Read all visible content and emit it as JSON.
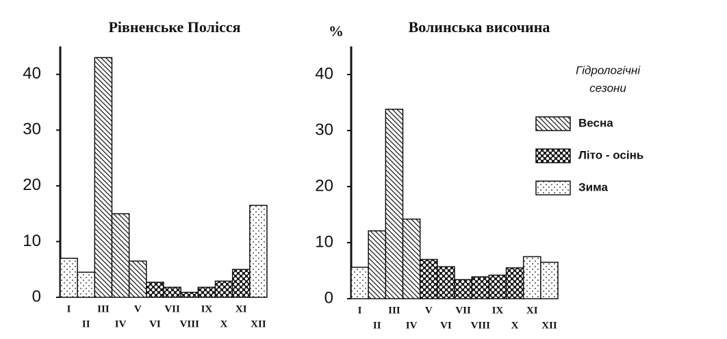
{
  "chart_data": [
    {
      "type": "bar",
      "title": "Рівненське Полісся",
      "categories": [
        "I",
        "II",
        "III",
        "IV",
        "V",
        "VI",
        "VII",
        "VIII",
        "IX",
        "X",
        "XI",
        "XII"
      ],
      "values": [
        7,
        4.5,
        43,
        15,
        6.5,
        2.7,
        1.8,
        0.9,
        1.8,
        2.9,
        5,
        16.5
      ],
      "season_of_bar": [
        2,
        2,
        0,
        0,
        0,
        1,
        1,
        1,
        1,
        1,
        1,
        2
      ],
      "ylim": [
        0,
        45
      ],
      "yticks": [
        0,
        10,
        20,
        30,
        40
      ]
    },
    {
      "type": "bar",
      "title": "Волинська височина",
      "y_label": "%",
      "categories": [
        "I",
        "II",
        "III",
        "IV",
        "V",
        "VI",
        "VII",
        "VIII",
        "IX",
        "X",
        "XI",
        "XII"
      ],
      "values": [
        5.6,
        12.1,
        33.8,
        14.2,
        7,
        5.7,
        3.4,
        3.9,
        4.2,
        5.5,
        7.5,
        6.5
      ],
      "season_of_bar": [
        2,
        0,
        0,
        0,
        1,
        1,
        1,
        1,
        1,
        1,
        2,
        2
      ],
      "ylim": [
        0,
        45
      ],
      "yticks": [
        0,
        10,
        20,
        30,
        40
      ]
    }
  ],
  "legend": {
    "title": [
      "Гідрологічні",
      "сезони"
    ],
    "entries": [
      {
        "name": "Весна",
        "pattern": "hatch"
      },
      {
        "name": "Літо - осінь",
        "pattern": "cross"
      },
      {
        "name": "Зима",
        "pattern": "dots"
      }
    ]
  }
}
